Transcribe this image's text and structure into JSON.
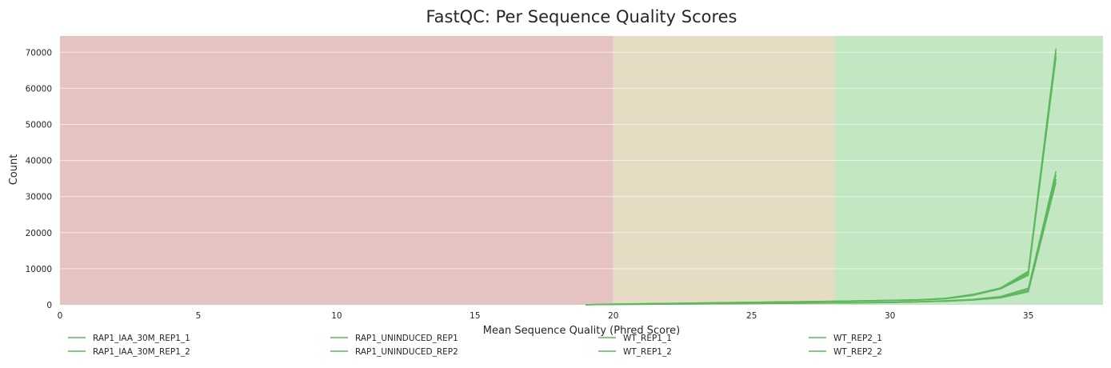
{
  "chart_data": {
    "type": "line",
    "title": "FastQC: Per Sequence Quality Scores",
    "xlabel": "Mean Sequence Quality (Phred Score)",
    "ylabel": "Count",
    "xlim": [
      0,
      37.7
    ],
    "ylim": [
      0,
      74500
    ],
    "x_ticks": [
      0,
      5,
      10,
      15,
      20,
      25,
      30,
      35
    ],
    "y_ticks": [
      0,
      10000,
      20000,
      30000,
      40000,
      50000,
      60000,
      70000
    ],
    "grid": true,
    "legend_position": "bottom",
    "series_color": "#5cb85c",
    "bands": [
      {
        "from": 0,
        "to": 20,
        "color": "#e6c3c3"
      },
      {
        "from": 20,
        "to": 28,
        "color": "#e6dcc3"
      },
      {
        "from": 28,
        "to": 37.7,
        "color": "#c3e6c3"
      }
    ],
    "x": [
      19,
      20,
      21,
      22,
      23,
      24,
      25,
      26,
      27,
      28,
      29,
      30,
      31,
      32,
      33,
      34,
      35,
      36
    ],
    "series": [
      {
        "name": "RAP1_IAA_30M_REP1_1",
        "values": [
          20,
          150,
          250,
          350,
          450,
          550,
          650,
          750,
          850,
          950,
          1050,
          1150,
          1300,
          1700,
          2700,
          4600,
          9000,
          70000
        ]
      },
      {
        "name": "RAP1_IAA_30M_REP1_2",
        "values": [
          20,
          150,
          250,
          350,
          450,
          550,
          650,
          750,
          850,
          950,
          1050,
          1150,
          1300,
          1650,
          2600,
          4400,
          8200,
          68500
        ]
      },
      {
        "name": "RAP1_UNINDUCED_REP1",
        "values": [
          20,
          120,
          200,
          250,
          300,
          350,
          400,
          450,
          500,
          550,
          600,
          700,
          850,
          1100,
          1500,
          2200,
          4200,
          36000
        ]
      },
      {
        "name": "RAP1_UNINDUCED_REP2",
        "values": [
          20,
          120,
          200,
          250,
          300,
          350,
          400,
          450,
          500,
          550,
          600,
          700,
          850,
          1100,
          1500,
          2300,
          4600,
          37000
        ]
      },
      {
        "name": "WT_REP1_1",
        "values": [
          20,
          200,
          300,
          400,
          500,
          600,
          700,
          800,
          900,
          1000,
          1100,
          1250,
          1400,
          1800,
          2900,
          4700,
          9300,
          71000
        ]
      },
      {
        "name": "WT_REP1_2",
        "values": [
          20,
          200,
          300,
          400,
          500,
          600,
          700,
          800,
          900,
          1000,
          1100,
          1250,
          1400,
          1750,
          2800,
          4500,
          8600,
          69000
        ]
      },
      {
        "name": "WT_REP2_1",
        "values": [
          20,
          100,
          150,
          200,
          250,
          300,
          350,
          400,
          450,
          500,
          550,
          650,
          800,
          1000,
          1300,
          1900,
          3600,
          34000
        ]
      },
      {
        "name": "WT_REP2_2",
        "values": [
          20,
          100,
          150,
          200,
          250,
          300,
          350,
          400,
          450,
          500,
          550,
          650,
          800,
          1000,
          1350,
          2000,
          3800,
          34800
        ]
      }
    ]
  }
}
